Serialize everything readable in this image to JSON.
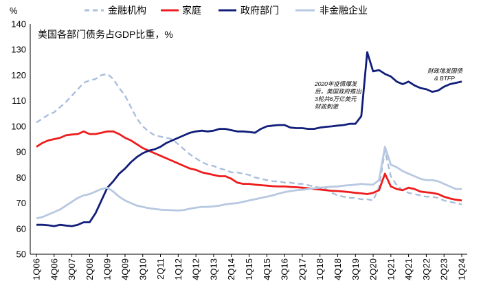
{
  "chart_data": {
    "type": "line",
    "title": "美国各部门债务占GDP比重，%",
    "ylabel": "%",
    "ylim": [
      50,
      140
    ],
    "yticks": [
      50,
      60,
      70,
      80,
      90,
      100,
      110,
      120,
      130,
      140
    ],
    "xticklabels": [
      "1Q06",
      "4Q06",
      "3Q07",
      "2Q08",
      "1Q09",
      "4Q09",
      "3Q10",
      "2Q11",
      "1Q12",
      "4Q12",
      "3Q13",
      "2Q14",
      "1Q15",
      "4Q15",
      "3Q16",
      "2Q17",
      "1Q18",
      "4Q18",
      "3Q19",
      "2Q20",
      "1Q21",
      "4Q21",
      "3Q22",
      "2Q23",
      "1Q24"
    ],
    "n_points": 73,
    "series": [
      {
        "name": "金融机构",
        "color": "#a9bfdd",
        "dash": true,
        "values": [
          101.5,
          103,
          104.5,
          105.5,
          107.5,
          109.5,
          112,
          114.5,
          117,
          118,
          118.5,
          120,
          120.5,
          118.5,
          115,
          112,
          107.5,
          103,
          100,
          98,
          96.5,
          96,
          95.5,
          95,
          93,
          91,
          89,
          87.5,
          86,
          85,
          84.5,
          83.5,
          83,
          82,
          82,
          81.5,
          81,
          80,
          79.5,
          79,
          78.5,
          78.5,
          78,
          78,
          77.5,
          77.5,
          77,
          76.5,
          76,
          75.5,
          74,
          73,
          72.5,
          72,
          72,
          71.5,
          71.5,
          71,
          76,
          90.5,
          80.5,
          77,
          75,
          74,
          73.5,
          73,
          72.5,
          72.5,
          72,
          71,
          70.5,
          70,
          69.5
        ]
      },
      {
        "name": "家庭",
        "color": "#ee1c1c",
        "dash": false,
        "values": [
          92,
          93.5,
          94.5,
          95,
          95.5,
          96.5,
          96.8,
          97,
          98,
          97,
          97,
          97.5,
          98,
          98,
          97,
          95.5,
          94.5,
          93,
          91.5,
          90.5,
          89.5,
          88.5,
          87.5,
          86.5,
          85.5,
          84.5,
          83.5,
          83,
          82,
          81.5,
          81,
          80.5,
          80.5,
          79.5,
          78,
          77.5,
          77.5,
          77.2,
          77,
          76.8,
          76.6,
          76.5,
          76.5,
          76.3,
          76.2,
          76,
          75.8,
          75.5,
          75.3,
          75,
          74.8,
          74.7,
          74.5,
          74.3,
          74,
          73.8,
          73.5,
          74,
          75,
          81.5,
          76.5,
          75.5,
          75,
          76,
          75.5,
          74.5,
          74.2,
          74,
          73.5,
          72.5,
          71.8,
          71.3,
          71
        ]
      },
      {
        "name": "政府部门",
        "color": "#111e7a",
        "dash": false,
        "values": [
          61.5,
          61.5,
          61.3,
          61,
          61.5,
          61.2,
          61,
          61.5,
          62.5,
          62.5,
          66,
          71,
          76,
          78.5,
          81.5,
          83.5,
          86,
          88,
          89.5,
          90.5,
          91,
          92,
          93.5,
          94.5,
          95.5,
          96.5,
          97.5,
          98,
          98.3,
          98,
          98.3,
          99,
          99,
          98.5,
          98,
          98,
          97.8,
          97.5,
          99,
          100,
          100.3,
          100.5,
          100.5,
          99.5,
          99.3,
          99.3,
          99,
          99,
          99.5,
          99.8,
          100,
          100.3,
          100.5,
          101,
          101,
          104,
          129,
          121.5,
          122,
          120.5,
          119.5,
          117.5,
          116.5,
          117.5,
          116,
          115,
          114.5,
          113.5,
          114,
          115.5,
          116.5,
          117,
          117.5
        ]
      },
      {
        "name": "非金融企业",
        "color": "#b7c8e0",
        "dash": false,
        "values": [
          64,
          64.5,
          65.5,
          66.5,
          67.5,
          69,
          70.5,
          72,
          73,
          73.5,
          74.5,
          75.5,
          76,
          74.5,
          72.5,
          71,
          70,
          69,
          68.5,
          68,
          67.7,
          67.4,
          67.3,
          67.2,
          67.1,
          67.3,
          67.8,
          68.2,
          68.5,
          68.5,
          68.7,
          69,
          69.5,
          69.8,
          70,
          70.5,
          71,
          71.5,
          72,
          72.5,
          73,
          73.7,
          74.3,
          74.7,
          75,
          75.2,
          75.5,
          75.8,
          76,
          76.2,
          76.4,
          76.5,
          76.8,
          77,
          77.2,
          77.5,
          77.3,
          77.2,
          79,
          92,
          85,
          84,
          82.5,
          81.5,
          80.5,
          79.5,
          79,
          79,
          78.5,
          77.5,
          76.5,
          75.5,
          75.5
        ]
      }
    ],
    "annotations": [
      {
        "lines": [
          "2020年疫情爆发",
          "后，美国政府推出",
          "3轮共6万亿美元",
          "财政刺激"
        ]
      },
      {
        "lines": [
          "财政增发国债",
          "& BTFP"
        ]
      }
    ]
  }
}
